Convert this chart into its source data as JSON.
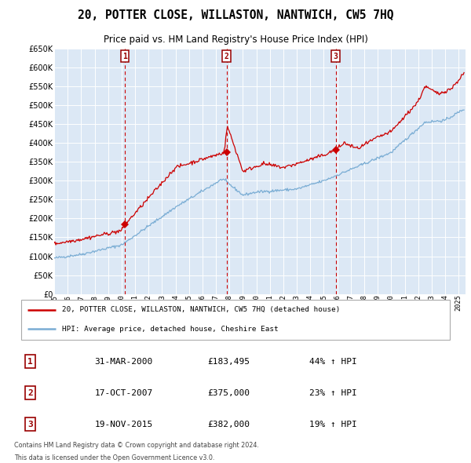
{
  "title": "20, POTTER CLOSE, WILLASTON, NANTWICH, CW5 7HQ",
  "subtitle": "Price paid vs. HM Land Registry's House Price Index (HPI)",
  "legend_line1": "20, POTTER CLOSE, WILLASTON, NANTWICH, CW5 7HQ (detached house)",
  "legend_line2": "HPI: Average price, detached house, Cheshire East",
  "footer1": "Contains HM Land Registry data © Crown copyright and database right 2024.",
  "footer2": "This data is licensed under the Open Government Licence v3.0.",
  "transactions": [
    {
      "num": 1,
      "date_yr": 2000.247,
      "price": 183495
    },
    {
      "num": 2,
      "date_yr": 2007.792,
      "price": 375000
    },
    {
      "num": 3,
      "date_yr": 2015.884,
      "price": 382000
    }
  ],
  "table_rows": [
    {
      "num": "1",
      "date": "31-MAR-2000",
      "price": "£183,495",
      "pct": "44% ↑ HPI"
    },
    {
      "num": "2",
      "date": "17-OCT-2007",
      "price": "£375,000",
      "pct": "23% ↑ HPI"
    },
    {
      "num": "3",
      "date": "19-NOV-2015",
      "price": "£382,000",
      "pct": "19% ↑ HPI"
    }
  ],
  "hpi_color": "#7aadd4",
  "price_color": "#cc0000",
  "plot_bg": "#dce8f5",
  "grid_color": "#ffffff",
  "vline_color": "#cc0000",
  "ylim": [
    0,
    650000
  ],
  "yticks": [
    0,
    50000,
    100000,
    150000,
    200000,
    250000,
    300000,
    350000,
    400000,
    450000,
    500000,
    550000,
    600000,
    650000
  ],
  "xmin": 1995.0,
  "xmax": 2025.5
}
